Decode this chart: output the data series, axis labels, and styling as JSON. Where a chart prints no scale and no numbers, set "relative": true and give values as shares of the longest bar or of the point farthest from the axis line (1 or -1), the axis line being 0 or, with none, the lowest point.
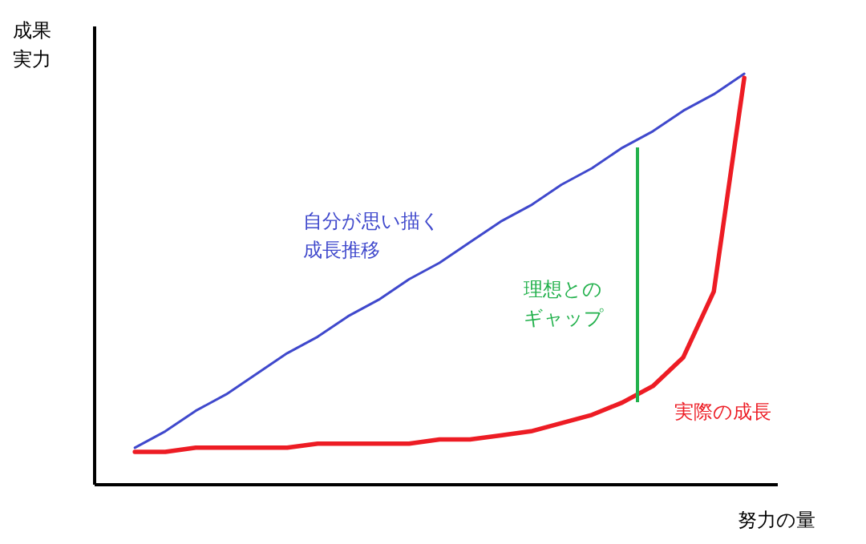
{
  "chart_data": {
    "type": "line",
    "relative": true,
    "xlabel": "努力の量",
    "ylabel": "成果実力",
    "legend": false,
    "grid": false,
    "marker": "none",
    "line_style": "solid",
    "categories": [
      null,
      null,
      null,
      null,
      null,
      null,
      null,
      null,
      null,
      null,
      null,
      null,
      null,
      null,
      null,
      null,
      null,
      null,
      null,
      null,
      null
    ],
    "annotations": [
      "理想とのギャップ"
    ],
    "series": [
      {
        "name": "自分が思い描く成長推移",
        "color": "#3f48cc",
        "values": [
          0.09,
          0.13,
          0.18,
          0.22,
          0.27,
          0.32,
          0.36,
          0.41,
          0.45,
          0.5,
          0.54,
          0.59,
          0.64,
          0.68,
          0.73,
          0.77,
          0.82,
          0.86,
          0.91,
          0.95,
          1.0
        ]
      },
      {
        "name": "実際の成長",
        "color": "#ed1c24",
        "values": [
          0.08,
          0.08,
          0.09,
          0.09,
          0.09,
          0.09,
          0.1,
          0.1,
          0.1,
          0.1,
          0.11,
          0.11,
          0.12,
          0.13,
          0.15,
          0.17,
          0.2,
          0.24,
          0.31,
          0.47,
          0.99
        ]
      }
    ]
  }
}
